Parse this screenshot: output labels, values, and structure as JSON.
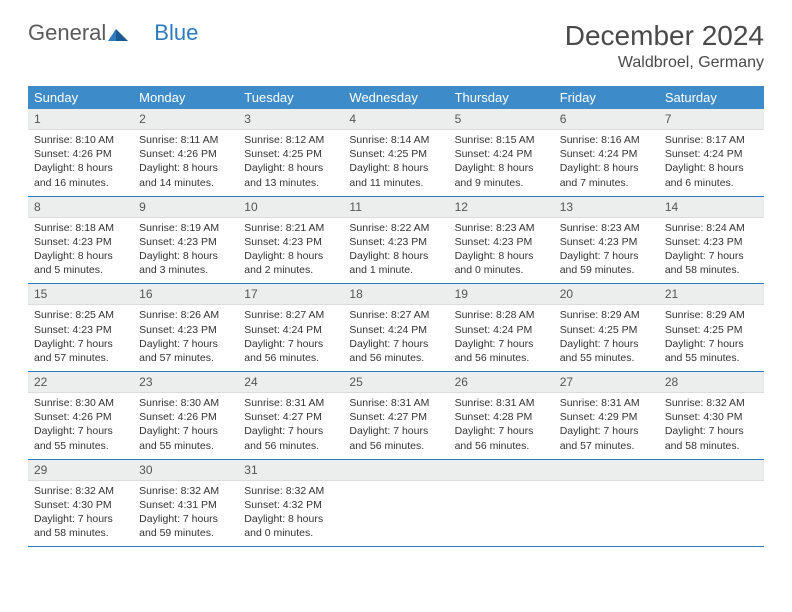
{
  "logo": {
    "word1": "General",
    "word2": "Blue"
  },
  "title": "December 2024",
  "location": "Waldbroel, Germany",
  "colors": {
    "header_bg": "#3d8bc8",
    "header_text": "#ffffff",
    "row_divider": "#2d7bbf",
    "daynum_bg": "#eceded",
    "body_text": "#333333",
    "title_text": "#4a4a4a"
  },
  "weekdays": [
    "Sunday",
    "Monday",
    "Tuesday",
    "Wednesday",
    "Thursday",
    "Friday",
    "Saturday"
  ],
  "days": [
    {
      "n": 1,
      "sunrise": "8:10 AM",
      "sunset": "4:26 PM",
      "daylight": "8 hours and 16 minutes."
    },
    {
      "n": 2,
      "sunrise": "8:11 AM",
      "sunset": "4:26 PM",
      "daylight": "8 hours and 14 minutes."
    },
    {
      "n": 3,
      "sunrise": "8:12 AM",
      "sunset": "4:25 PM",
      "daylight": "8 hours and 13 minutes."
    },
    {
      "n": 4,
      "sunrise": "8:14 AM",
      "sunset": "4:25 PM",
      "daylight": "8 hours and 11 minutes."
    },
    {
      "n": 5,
      "sunrise": "8:15 AM",
      "sunset": "4:24 PM",
      "daylight": "8 hours and 9 minutes."
    },
    {
      "n": 6,
      "sunrise": "8:16 AM",
      "sunset": "4:24 PM",
      "daylight": "8 hours and 7 minutes."
    },
    {
      "n": 7,
      "sunrise": "8:17 AM",
      "sunset": "4:24 PM",
      "daylight": "8 hours and 6 minutes."
    },
    {
      "n": 8,
      "sunrise": "8:18 AM",
      "sunset": "4:23 PM",
      "daylight": "8 hours and 5 minutes."
    },
    {
      "n": 9,
      "sunrise": "8:19 AM",
      "sunset": "4:23 PM",
      "daylight": "8 hours and 3 minutes."
    },
    {
      "n": 10,
      "sunrise": "8:21 AM",
      "sunset": "4:23 PM",
      "daylight": "8 hours and 2 minutes."
    },
    {
      "n": 11,
      "sunrise": "8:22 AM",
      "sunset": "4:23 PM",
      "daylight": "8 hours and 1 minute."
    },
    {
      "n": 12,
      "sunrise": "8:23 AM",
      "sunset": "4:23 PM",
      "daylight": "8 hours and 0 minutes."
    },
    {
      "n": 13,
      "sunrise": "8:23 AM",
      "sunset": "4:23 PM",
      "daylight": "7 hours and 59 minutes."
    },
    {
      "n": 14,
      "sunrise": "8:24 AM",
      "sunset": "4:23 PM",
      "daylight": "7 hours and 58 minutes."
    },
    {
      "n": 15,
      "sunrise": "8:25 AM",
      "sunset": "4:23 PM",
      "daylight": "7 hours and 57 minutes."
    },
    {
      "n": 16,
      "sunrise": "8:26 AM",
      "sunset": "4:23 PM",
      "daylight": "7 hours and 57 minutes."
    },
    {
      "n": 17,
      "sunrise": "8:27 AM",
      "sunset": "4:24 PM",
      "daylight": "7 hours and 56 minutes."
    },
    {
      "n": 18,
      "sunrise": "8:27 AM",
      "sunset": "4:24 PM",
      "daylight": "7 hours and 56 minutes."
    },
    {
      "n": 19,
      "sunrise": "8:28 AM",
      "sunset": "4:24 PM",
      "daylight": "7 hours and 56 minutes."
    },
    {
      "n": 20,
      "sunrise": "8:29 AM",
      "sunset": "4:25 PM",
      "daylight": "7 hours and 55 minutes."
    },
    {
      "n": 21,
      "sunrise": "8:29 AM",
      "sunset": "4:25 PM",
      "daylight": "7 hours and 55 minutes."
    },
    {
      "n": 22,
      "sunrise": "8:30 AM",
      "sunset": "4:26 PM",
      "daylight": "7 hours and 55 minutes."
    },
    {
      "n": 23,
      "sunrise": "8:30 AM",
      "sunset": "4:26 PM",
      "daylight": "7 hours and 55 minutes."
    },
    {
      "n": 24,
      "sunrise": "8:31 AM",
      "sunset": "4:27 PM",
      "daylight": "7 hours and 56 minutes."
    },
    {
      "n": 25,
      "sunrise": "8:31 AM",
      "sunset": "4:27 PM",
      "daylight": "7 hours and 56 minutes."
    },
    {
      "n": 26,
      "sunrise": "8:31 AM",
      "sunset": "4:28 PM",
      "daylight": "7 hours and 56 minutes."
    },
    {
      "n": 27,
      "sunrise": "8:31 AM",
      "sunset": "4:29 PM",
      "daylight": "7 hours and 57 minutes."
    },
    {
      "n": 28,
      "sunrise": "8:32 AM",
      "sunset": "4:30 PM",
      "daylight": "7 hours and 58 minutes."
    },
    {
      "n": 29,
      "sunrise": "8:32 AM",
      "sunset": "4:30 PM",
      "daylight": "7 hours and 58 minutes."
    },
    {
      "n": 30,
      "sunrise": "8:32 AM",
      "sunset": "4:31 PM",
      "daylight": "7 hours and 59 minutes."
    },
    {
      "n": 31,
      "sunrise": "8:32 AM",
      "sunset": "4:32 PM",
      "daylight": "8 hours and 0 minutes."
    }
  ],
  "labels": {
    "sunrise": "Sunrise: ",
    "sunset": "Sunset: ",
    "daylight": "Daylight: "
  },
  "start_weekday": 0,
  "total_cells": 35
}
